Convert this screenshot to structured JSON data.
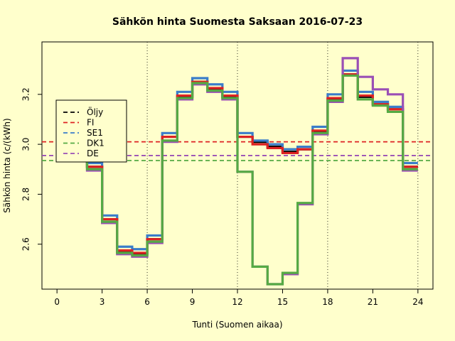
{
  "chart_data": {
    "type": "line",
    "step": true,
    "title": "Sähkön hinta Suomesta Saksaan 2016-07-23",
    "xlabel": "Tunti (Suomen aikaa)",
    "ylabel": "Sähkön hinta (c/(kWh)",
    "xlim": [
      -1,
      25
    ],
    "ylim": [
      2.42,
      3.41
    ],
    "x_ticks": [
      0,
      3,
      6,
      9,
      12,
      15,
      18,
      21,
      24
    ],
    "y_ticks": [
      2.6,
      2.8,
      3.0,
      3.2
    ],
    "y_tick_labels": [
      "2.6",
      "2.8",
      "3.0",
      "3.2"
    ],
    "vlines": [
      6,
      12,
      18,
      24
    ],
    "legend_position": "top-left",
    "hours": [
      0,
      1,
      2,
      3,
      4,
      5,
      6,
      7,
      8,
      9,
      10,
      11,
      12,
      13,
      14,
      15,
      16,
      17,
      18,
      19,
      20,
      21,
      22,
      23,
      24
    ],
    "series": [
      {
        "name": "Öljy",
        "color": "#000000",
        "average": null,
        "values": [
          null,
          3.16,
          3.02,
          2.91,
          2.7,
          2.57,
          2.56,
          2.62,
          3.03,
          3.19,
          3.25,
          3.22,
          3.19,
          3.03,
          3.01,
          2.99,
          2.97,
          2.98,
          3.05,
          3.18,
          3.28,
          3.19,
          3.16,
          3.14,
          2.91
        ]
      },
      {
        "name": "SE1",
        "color": "#3A7DC9",
        "average": null,
        "values": [
          null,
          3.16,
          3.03,
          2.925,
          2.715,
          2.59,
          2.58,
          2.635,
          3.045,
          3.21,
          3.265,
          3.24,
          3.21,
          3.045,
          3.015,
          3.0,
          2.98,
          2.99,
          3.07,
          3.2,
          3.295,
          3.21,
          3.17,
          3.15,
          2.925
        ]
      },
      {
        "name": "FI",
        "color": "#DD2222",
        "average": 3.01,
        "values": [
          null,
          3.16,
          3.02,
          2.91,
          2.7,
          2.575,
          2.565,
          2.62,
          3.03,
          3.195,
          3.25,
          3.225,
          3.195,
          3.03,
          3.0,
          2.985,
          2.965,
          2.98,
          3.055,
          3.185,
          3.28,
          3.195,
          3.16,
          3.14,
          2.91
        ]
      },
      {
        "name": "DE",
        "color": "#9A4FB5",
        "average": 2.955,
        "values": [
          null,
          3.16,
          3.0,
          2.895,
          2.685,
          2.56,
          2.55,
          2.605,
          3.01,
          3.18,
          3.24,
          3.21,
          3.18,
          2.89,
          2.51,
          2.44,
          2.48,
          2.76,
          3.04,
          3.17,
          3.345,
          3.27,
          3.22,
          3.2,
          2.895
        ]
      },
      {
        "name": "DK1",
        "color": "#55AA44",
        "average": 2.935,
        "values": [
          null,
          3.16,
          3.01,
          2.9,
          2.69,
          2.565,
          2.555,
          2.61,
          3.015,
          3.185,
          3.245,
          3.215,
          3.185,
          2.89,
          2.51,
          2.44,
          2.485,
          2.765,
          3.045,
          3.175,
          3.275,
          3.18,
          3.155,
          3.13,
          2.9
        ]
      }
    ],
    "legend": [
      {
        "name": "Öljy",
        "color": "#000000"
      },
      {
        "name": "FI",
        "color": "#DD2222"
      },
      {
        "name": "SE1",
        "color": "#3A7DC9"
      },
      {
        "name": "DK1",
        "color": "#55AA44"
      },
      {
        "name": "DE",
        "color": "#9A4FB5"
      }
    ]
  }
}
